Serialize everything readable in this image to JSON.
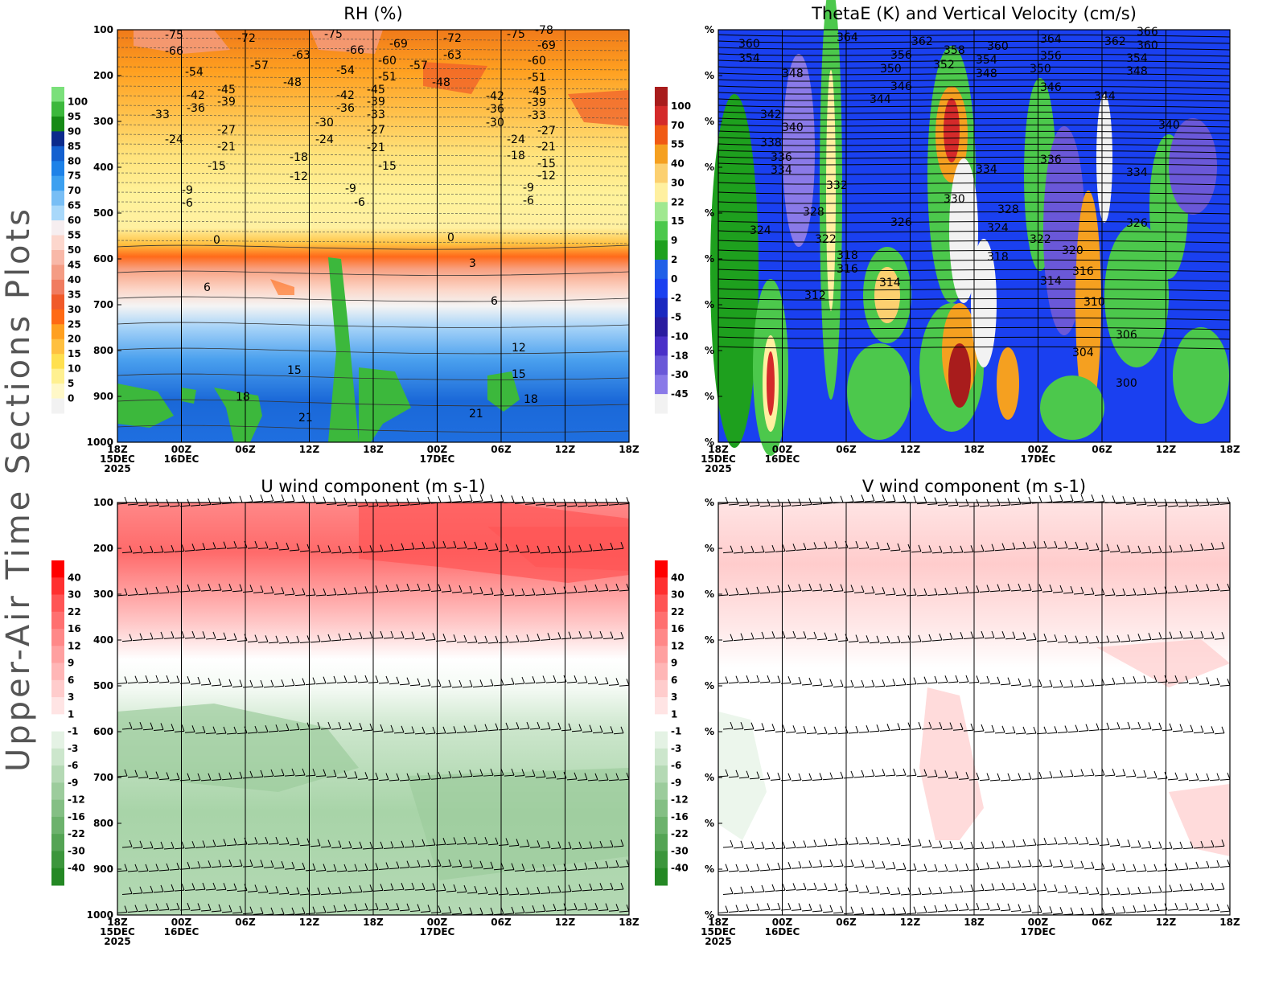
{
  "side_title": "Upper-Air Time Sections Plots",
  "panels": [
    {
      "title": "RH (%)",
      "y_labels": [
        "100",
        "200",
        "300",
        "400",
        "500",
        "600",
        "700",
        "800",
        "900",
        "1000"
      ],
      "x_labels": [
        [
          "18Z",
          "15DEC",
          "2025"
        ],
        [
          "00Z",
          "16DEC"
        ],
        [
          "06Z"
        ],
        [
          "12Z"
        ],
        [
          "18Z"
        ],
        [
          "00Z",
          "17DEC"
        ],
        [
          "06Z"
        ],
        [
          "12Z"
        ],
        [
          "18Z"
        ]
      ],
      "colorbar_labels": [
        "100",
        "95",
        "90",
        "85",
        "80",
        "75",
        "70",
        "65",
        "60",
        "55",
        "50",
        "45",
        "40",
        "35",
        "30",
        "25",
        "20",
        "15",
        "10",
        "5",
        "0"
      ],
      "colorbar_colors": [
        "#7ae07a",
        "#3cb83c",
        "#168a16",
        "#0c2a8c",
        "#1460d0",
        "#1e82e8",
        "#3ca0f0",
        "#78bef5",
        "#a8d8fa",
        "#f6eef0",
        "#fcd6cc",
        "#f8b8a8",
        "#f49c84",
        "#f07c60",
        "#f05a2a",
        "#ff6a14",
        "#ffa020",
        "#ffc040",
        "#ffe050",
        "#fff090",
        "#fff8c8",
        "#f2f2f2"
      ],
      "contour_labels": [
        "-75",
        "-66",
        "-72",
        "-57",
        "-63",
        "-75",
        "-66",
        "-54",
        "-48",
        "-54",
        "-69",
        "-60",
        "-51",
        "-57",
        "-72",
        "-63",
        "-48",
        "-75",
        "-78",
        "-69",
        "-60",
        "-51",
        "-45",
        "-42",
        "-36",
        "-45",
        "-39",
        "-33",
        "-42",
        "-36",
        "-39",
        "-45",
        "-33",
        "-42",
        "-36",
        "-30",
        "-39",
        "-33",
        "-27",
        "-21",
        "-30",
        "-24",
        "-27",
        "-21",
        "-24",
        "-15",
        "-27",
        "-21",
        "-15",
        "-18",
        "-12",
        "-24",
        "-18",
        "-15",
        "-12",
        "-9",
        "-6",
        "-9",
        "-6",
        "-9",
        "-6",
        "0",
        "0",
        "3",
        "6",
        "6",
        "12",
        "15",
        "15",
        "18",
        "18",
        "21",
        "21"
      ]
    },
    {
      "title": "ThetaE (K) and Vertical Velocity (cm/s)",
      "y_labels": [
        "%",
        "%",
        "%",
        "%",
        "%",
        "%",
        "%",
        "%",
        "%",
        "%"
      ],
      "x_labels": [
        [
          "18Z",
          "15DEC",
          "2025"
        ],
        [
          "00Z",
          "16DEC"
        ],
        [
          "06Z"
        ],
        [
          "12Z"
        ],
        [
          "18Z"
        ],
        [
          "00Z",
          "17DEC"
        ],
        [
          "06Z"
        ],
        [
          "12Z"
        ],
        [
          "18Z"
        ]
      ],
      "colorbar_labels": [
        "100",
        "70",
        "55",
        "40",
        "30",
        "22",
        "15",
        "9",
        "2",
        "0",
        "-2",
        "-5",
        "-10",
        "-18",
        "-30",
        "-45"
      ],
      "colorbar_colors": [
        "#a81c1c",
        "#d42a2a",
        "#f05a14",
        "#f5a020",
        "#fcd070",
        "#fff0a0",
        "#a0e890",
        "#4cc84c",
        "#1ea01e",
        "#2060e8",
        "#1a40f0",
        "#1a28c0",
        "#2a1ca0",
        "#4a30c8",
        "#6a58d8",
        "#8a7ae8",
        "#f2f2f2"
      ],
      "contour_labels": [
        "360",
        "354",
        "348",
        "364",
        "362",
        "356",
        "350",
        "346",
        "344",
        "358",
        "352",
        "360",
        "354",
        "348",
        "364",
        "356",
        "350",
        "346",
        "362",
        "366",
        "360",
        "354",
        "348",
        "344",
        "340",
        "342",
        "340",
        "338",
        "336",
        "334",
        "332",
        "334",
        "336",
        "334",
        "330",
        "328",
        "328",
        "326",
        "326",
        "324",
        "324",
        "322",
        "322",
        "318",
        "316",
        "318",
        "320",
        "316",
        "314",
        "314",
        "312",
        "310",
        "306",
        "304",
        "300"
      ]
    },
    {
      "title": "U wind component (m s-1)",
      "y_labels": [
        "100",
        "200",
        "300",
        "400",
        "500",
        "600",
        "700",
        "800",
        "900",
        "1000"
      ],
      "x_labels": [
        [
          "18Z",
          "15DEC",
          "2025"
        ],
        [
          "00Z",
          "16DEC"
        ],
        [
          "06Z"
        ],
        [
          "12Z"
        ],
        [
          "18Z"
        ],
        [
          "00Z",
          "17DEC"
        ],
        [
          "06Z"
        ],
        [
          "12Z"
        ],
        [
          "18Z"
        ]
      ],
      "colorbar_labels": [
        "40",
        "30",
        "22",
        "16",
        "12",
        "9",
        "6",
        "3",
        "1",
        "-1",
        "-3",
        "-6",
        "-9",
        "-12",
        "-16",
        "-22",
        "-30",
        "-40"
      ],
      "colorbar_colors": [
        "#ff0000",
        "#ff3030",
        "#ff5555",
        "#ff7070",
        "#ff8888",
        "#ffa0a0",
        "#ffb6b6",
        "#ffcccc",
        "#ffe4e4",
        "#ffffff",
        "#e4f2e4",
        "#cce6cc",
        "#b4d9b4",
        "#9ccc9c",
        "#84bf84",
        "#6cb26c",
        "#54a454",
        "#3c963c",
        "#248824"
      ],
      "contour_labels": []
    },
    {
      "title": "V wind component (m s-1)",
      "y_labels": [
        "%",
        "%",
        "%",
        "%",
        "%",
        "%",
        "%",
        "%",
        "%",
        "%"
      ],
      "x_labels": [
        [
          "18Z",
          "15DEC",
          "2025"
        ],
        [
          "00Z",
          "16DEC"
        ],
        [
          "06Z"
        ],
        [
          "12Z"
        ],
        [
          "18Z"
        ],
        [
          "00Z",
          "17DEC"
        ],
        [
          "06Z"
        ],
        [
          "12Z"
        ],
        [
          "18Z"
        ]
      ],
      "colorbar_labels": [
        "40",
        "30",
        "22",
        "16",
        "12",
        "9",
        "6",
        "3",
        "1",
        "-1",
        "-3",
        "-6",
        "-9",
        "-12",
        "-16",
        "-22",
        "-30",
        "-40"
      ],
      "colorbar_colors": [
        "#ff0000",
        "#ff3030",
        "#ff5555",
        "#ff7070",
        "#ff8888",
        "#ffa0a0",
        "#ffb6b6",
        "#ffcccc",
        "#ffe4e4",
        "#ffffff",
        "#e4f2e4",
        "#cce6cc",
        "#b4d9b4",
        "#9ccc9c",
        "#84bf84",
        "#6cb26c",
        "#54a454",
        "#3c963c",
        "#248824"
      ],
      "contour_labels": []
    }
  ]
}
